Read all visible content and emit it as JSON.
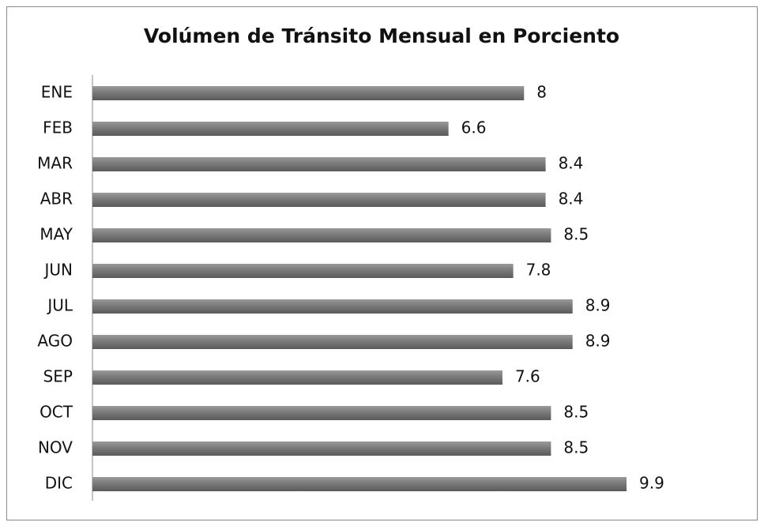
{
  "chart_data": {
    "type": "bar",
    "orientation": "horizontal",
    "title": "Volúmen de Tránsito Mensual en Porciento",
    "categories": [
      "ENE",
      "FEB",
      "MAR",
      "ABR",
      "MAY",
      "JUN",
      "JUL",
      "AGO",
      "SEP",
      "OCT",
      "NOV",
      "DIC"
    ],
    "values": [
      8,
      6.6,
      8.4,
      8.4,
      8.5,
      7.8,
      8.9,
      8.9,
      7.6,
      8.5,
      8.5,
      9.9
    ],
    "color": "#808080"
  }
}
